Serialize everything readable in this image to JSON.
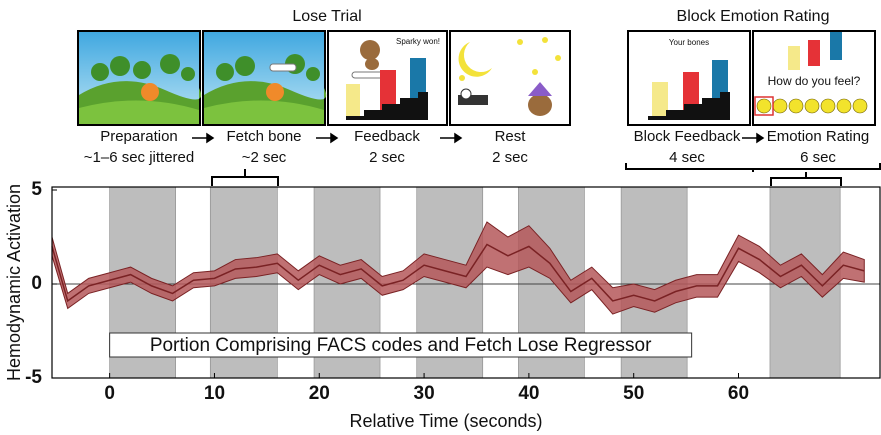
{
  "diagram": {
    "groups": [
      {
        "title": "Lose Trial",
        "steps": [
          {
            "label": "Preparation",
            "duration": "~1–6 sec jittered"
          },
          {
            "label": "Fetch bone",
            "duration": "~2 sec"
          },
          {
            "label": "Feedback",
            "duration": "2 sec"
          },
          {
            "label": "Rest",
            "duration": "2 sec"
          }
        ]
      },
      {
        "title": "Block Emotion Rating",
        "steps": [
          {
            "label": "Block Feedback",
            "duration": "4 sec"
          },
          {
            "label": "Emotion Rating",
            "duration": "6 sec"
          }
        ]
      }
    ],
    "screen_texts": {
      "feedback": "Sparky won!",
      "block_feedback": "Your bones",
      "emotion_rating": "How do you feel?"
    }
  },
  "chart_data": {
    "type": "line",
    "xlabel": "Relative Time (seconds)",
    "ylabel": "Hemodynamic Activation",
    "annotation": "Portion Comprising FACS codes and Fetch Lose Regressor",
    "xlim": [
      -5.5,
      73.5
    ],
    "ylim": [
      -5,
      5
    ],
    "xticks": [
      0,
      10,
      20,
      30,
      40,
      50,
      60
    ],
    "yticks": [
      5,
      0,
      -5
    ],
    "shaded_periods": [
      [
        0,
        6.3
      ],
      [
        9.6,
        16
      ],
      [
        19.5,
        25.8
      ],
      [
        29.3,
        35.6
      ],
      [
        39,
        45.3
      ],
      [
        48.8,
        55.1
      ],
      [
        63,
        69.7
      ]
    ],
    "x": [
      -5.5,
      -4,
      -2,
      0,
      2,
      4,
      6,
      8,
      10,
      12,
      14,
      16,
      18,
      20,
      22,
      24,
      26,
      28,
      30,
      32,
      34,
      36,
      38,
      40,
      42,
      44,
      46,
      48,
      50,
      52,
      54,
      56,
      58,
      60,
      62,
      64,
      66,
      68,
      70,
      72
    ],
    "series": [
      {
        "color": "#7a2224",
        "band_color": "#b5585a",
        "values": [
          2.0,
          -0.9,
          -0.1,
          0.2,
          0.5,
          -0.1,
          -0.5,
          0.2,
          0.3,
          0.8,
          0.9,
          1.1,
          0.2,
          1.0,
          0.5,
          0.8,
          -0.1,
          0.2,
          1.0,
          0.7,
          0.4,
          2.1,
          1.5,
          2.0,
          1.1,
          -0.4,
          0.3,
          -0.9,
          -0.6,
          -0.9,
          -0.4,
          -0.1,
          -0.1,
          1.9,
          1.3,
          0.4,
          1.0,
          -0.1,
          1.0,
          0.7
        ],
        "error": [
          0.5,
          0.4,
          0.4,
          0.4,
          0.4,
          0.4,
          0.4,
          0.4,
          0.4,
          0.5,
          0.5,
          0.5,
          0.5,
          0.5,
          0.5,
          0.5,
          0.5,
          0.5,
          0.6,
          0.6,
          0.6,
          1.2,
          1.0,
          1.1,
          0.8,
          0.6,
          0.6,
          0.7,
          0.6,
          0.6,
          0.6,
          0.6,
          0.6,
          0.7,
          0.7,
          0.6,
          0.6,
          0.6,
          0.7,
          0.6
        ]
      }
    ]
  }
}
